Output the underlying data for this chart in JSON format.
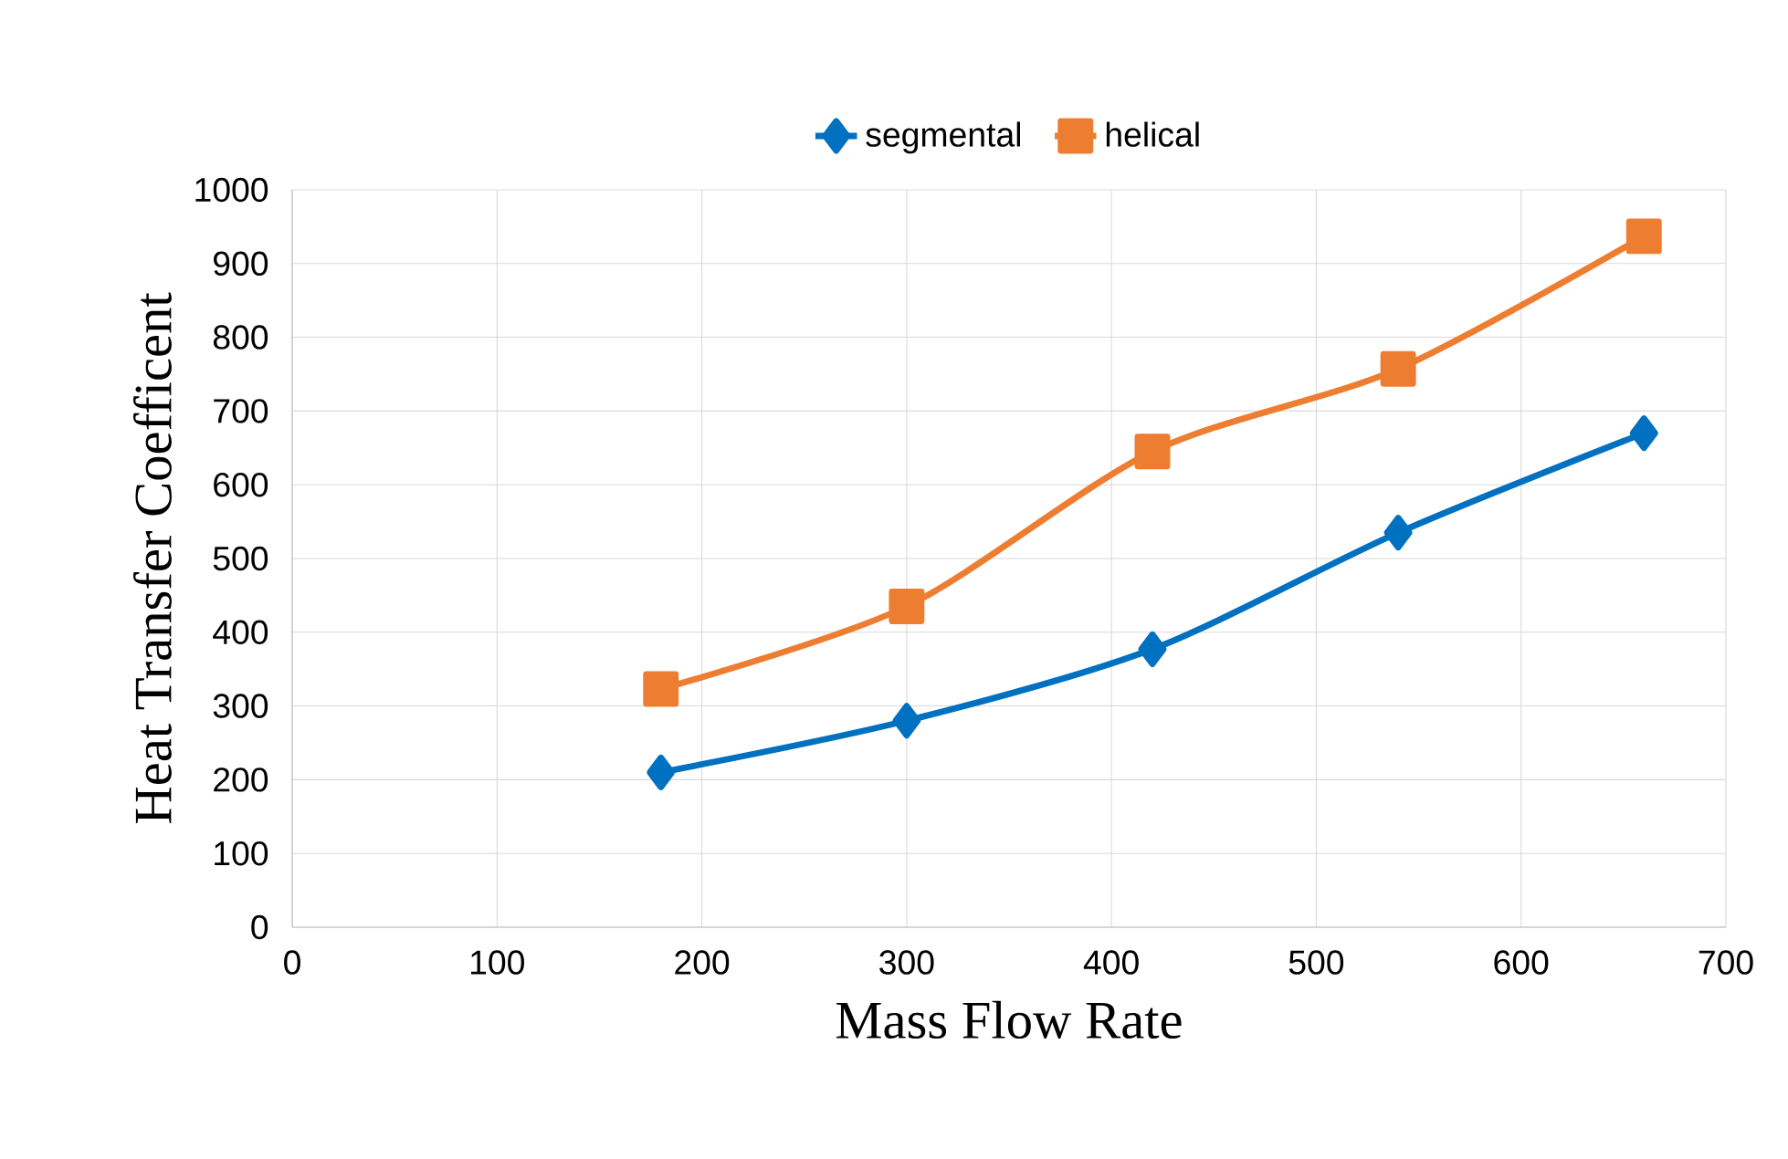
{
  "chart_data": {
    "type": "line",
    "xlabel": "Mass Flow Rate",
    "ylabel": "Heat Transfer Coefficent",
    "x": [
      180,
      300,
      420,
      540,
      660
    ],
    "series": [
      {
        "name": "segmental",
        "color": "#0070c0",
        "marker": "diamond",
        "values": [
          210,
          280,
          377,
          535,
          670
        ]
      },
      {
        "name": "helical",
        "color": "#ed7d31",
        "marker": "square",
        "values": [
          323,
          435,
          645,
          757,
          937
        ]
      }
    ],
    "xlim": [
      0,
      700
    ],
    "xticks": [
      0,
      100,
      200,
      300,
      400,
      500,
      600,
      700
    ],
    "ylim": [
      0,
      1000
    ],
    "yticks": [
      0,
      100,
      200,
      300,
      400,
      500,
      600,
      700,
      800,
      900,
      1000
    ],
    "grid": true,
    "legend": "top",
    "line_style": "solid"
  }
}
